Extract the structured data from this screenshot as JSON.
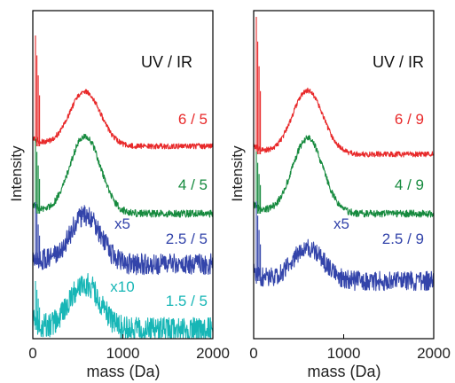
{
  "chart_data": [
    {
      "type": "line",
      "panel": "left",
      "header": "UV / IR",
      "xlabel": "mass (Da)",
      "ylabel": "Intensity",
      "xlim": [
        0,
        2000
      ],
      "xticks": [
        "0",
        "1000",
        "2000"
      ],
      "grid": false,
      "series": [
        {
          "name": "6 / 5",
          "color": "#e8292a",
          "scale": "",
          "peak_mass": 580,
          "noise": "low"
        },
        {
          "name": "4 / 5",
          "color": "#168a3e",
          "scale": "",
          "peak_mass": 580,
          "noise": "medium"
        },
        {
          "name": "2.5 / 5",
          "color": "#3344aa",
          "scale": "x5",
          "peak_mass": 580,
          "noise": "high"
        },
        {
          "name": "1.5 / 5",
          "color": "#17b6b6",
          "scale": "x10",
          "peak_mass": 580,
          "noise": "very high"
        }
      ]
    },
    {
      "type": "line",
      "panel": "right",
      "header": "UV / IR",
      "xlabel": "mass (Da)",
      "ylabel": "Intensity",
      "xlim": [
        0,
        2000
      ],
      "xticks": [
        "0",
        "1000",
        "2000"
      ],
      "grid": false,
      "series": [
        {
          "name": "6 / 9",
          "color": "#e8292a",
          "scale": "",
          "peak_mass": 600,
          "noise": "low"
        },
        {
          "name": "4 / 9",
          "color": "#168a3e",
          "scale": "",
          "peak_mass": 600,
          "noise": "medium"
        },
        {
          "name": "2.5 / 9",
          "color": "#3344aa",
          "scale": "x5",
          "peak_mass": 600,
          "noise": "high"
        }
      ]
    }
  ]
}
